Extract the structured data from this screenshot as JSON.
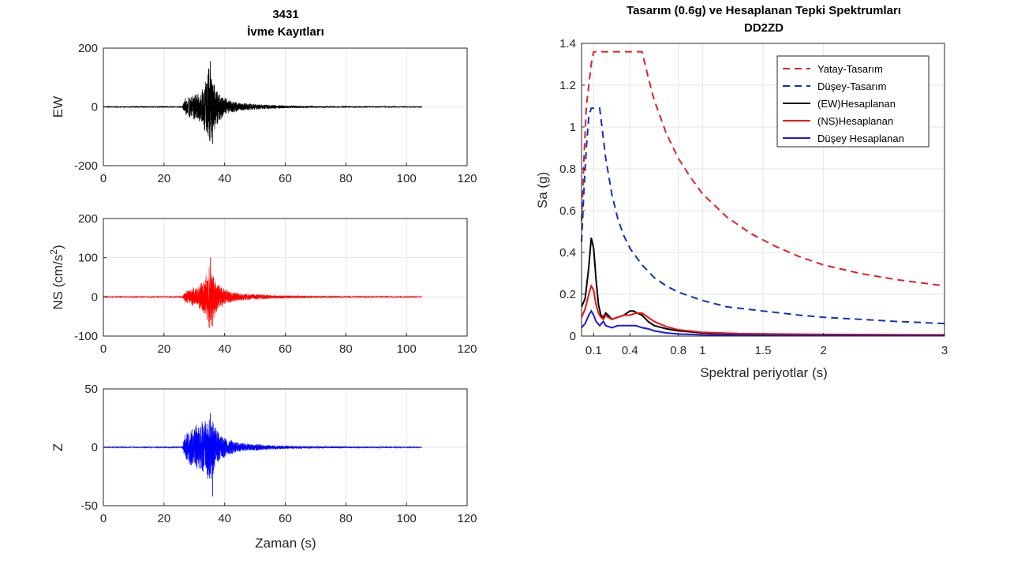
{
  "figure": {
    "left_title_line1": "3431",
    "left_title_line2": "İvme Kayıtları",
    "x_label_time": "Zaman (s)"
  },
  "chart_data": [
    {
      "type": "line",
      "id": "ew",
      "ylabel": "EW",
      "color": "#000000",
      "xlim": [
        0,
        120
      ],
      "ylim": [
        -200,
        200
      ],
      "xticks": [
        0,
        20,
        40,
        60,
        80,
        100,
        120
      ],
      "yticks": [
        -200,
        0,
        200
      ],
      "duration": 105,
      "envelope": [
        [
          0,
          1
        ],
        [
          26,
          1.5
        ],
        [
          27,
          30
        ],
        [
          29,
          40
        ],
        [
          31,
          45
        ],
        [
          33,
          70
        ],
        [
          35,
          150
        ],
        [
          36,
          120
        ],
        [
          37,
          70
        ],
        [
          39,
          40
        ],
        [
          41,
          25
        ],
        [
          45,
          15
        ],
        [
          50,
          10
        ],
        [
          55,
          7
        ],
        [
          60,
          5
        ],
        [
          70,
          3
        ],
        [
          80,
          2
        ],
        [
          90,
          1.5
        ],
        [
          105,
          1
        ]
      ],
      "peak_max": 155,
      "peak_min": -125
    },
    {
      "type": "line",
      "id": "ns",
      "ylabel": "NS (cm/s",
      "ylabel_sup": "2",
      "ylabel_close": ")",
      "color": "#ff0000",
      "xlim": [
        0,
        120
      ],
      "ylim": [
        -100,
        200
      ],
      "xticks": [
        0,
        20,
        40,
        60,
        80,
        100,
        120
      ],
      "yticks": [
        -100,
        0,
        100,
        200
      ],
      "duration": 105,
      "envelope": [
        [
          0,
          1
        ],
        [
          26,
          1.5
        ],
        [
          27,
          15
        ],
        [
          29,
          22
        ],
        [
          31,
          28
        ],
        [
          33,
          40
        ],
        [
          35,
          95
        ],
        [
          36,
          70
        ],
        [
          37,
          45
        ],
        [
          39,
          28
        ],
        [
          41,
          18
        ],
        [
          45,
          10
        ],
        [
          50,
          7
        ],
        [
          55,
          5
        ],
        [
          60,
          4
        ],
        [
          70,
          2.5
        ],
        [
          80,
          2
        ],
        [
          90,
          1.5
        ],
        [
          105,
          1
        ]
      ],
      "peak_max": 100,
      "peak_min": -75
    },
    {
      "type": "line",
      "id": "z",
      "ylabel": "Z",
      "color": "#0000ff",
      "xlim": [
        0,
        120
      ],
      "ylim": [
        -50,
        50
      ],
      "xticks": [
        0,
        20,
        40,
        60,
        80,
        100,
        120
      ],
      "yticks": [
        -50,
        0,
        50
      ],
      "duration": 105,
      "envelope": [
        [
          0,
          0.3
        ],
        [
          26,
          0.5
        ],
        [
          27,
          12
        ],
        [
          29,
          17
        ],
        [
          31,
          20
        ],
        [
          33,
          23
        ],
        [
          35,
          30
        ],
        [
          36,
          25
        ],
        [
          37,
          18
        ],
        [
          39,
          11
        ],
        [
          41,
          7
        ],
        [
          45,
          4
        ],
        [
          50,
          3
        ],
        [
          55,
          2
        ],
        [
          60,
          1.5
        ],
        [
          70,
          1
        ],
        [
          80,
          0.7
        ],
        [
          90,
          0.5
        ],
        [
          105,
          0.3
        ]
      ],
      "peak_max": 29,
      "peak_min": -42
    },
    {
      "type": "line",
      "id": "spectra",
      "title_line1": "Tasarım (0.6g) ve Hesaplanan Tepki Spektrumları",
      "title_line2": "DD2ZD",
      "xlabel": "Spektral periyotlar (s)",
      "ylabel": "Sa (g)",
      "xlim": [
        0,
        3
      ],
      "ylim": [
        0,
        1.4
      ],
      "xticks": [
        0.1,
        0.4,
        0.8,
        1,
        1.5,
        2,
        3
      ],
      "xtick_labels": [
        "0.1",
        "0.4",
        "0.8",
        "1",
        "1.5",
        "2",
        "3"
      ],
      "yticks": [
        0,
        0.2,
        0.4,
        0.6,
        0.8,
        1,
        1.2,
        1.4
      ],
      "ytick_labels": [
        "0",
        "0.2",
        "0.4",
        "0.6",
        "0.8",
        "1",
        "1.2",
        "1.4"
      ],
      "series": [
        {
          "name": "Yatay-Tasarım",
          "color": "#dd2222",
          "dash": "dashed",
          "x": [
            0,
            0.02,
            0.04,
            0.08,
            0.1,
            0.15,
            0.2,
            0.25,
            0.3,
            0.35,
            0.4,
            0.45,
            0.5,
            0.55,
            0.6,
            0.7,
            0.8,
            0.9,
            1.0,
            1.2,
            1.4,
            1.6,
            1.8,
            2.0,
            2.3,
            2.6,
            3.0
          ],
          "y": [
            0.55,
            0.85,
            1.1,
            1.3,
            1.36,
            1.36,
            1.36,
            1.36,
            1.36,
            1.36,
            1.36,
            1.36,
            1.36,
            1.24,
            1.13,
            0.97,
            0.85,
            0.76,
            0.68,
            0.57,
            0.49,
            0.43,
            0.38,
            0.34,
            0.3,
            0.27,
            0.24
          ]
        },
        {
          "name": "Düşey-Tasarım",
          "color": "#1133bb",
          "dash": "dashed",
          "x": [
            0,
            0.02,
            0.04,
            0.06,
            0.08,
            0.1,
            0.12,
            0.15,
            0.2,
            0.25,
            0.3,
            0.35,
            0.4,
            0.5,
            0.6,
            0.7,
            0.8,
            1.0,
            1.2,
            1.5,
            1.8,
            2.0,
            2.3,
            2.6,
            3.0
          ],
          "y": [
            0.45,
            0.7,
            0.9,
            1.05,
            1.09,
            1.09,
            1.09,
            1.09,
            0.85,
            0.68,
            0.56,
            0.48,
            0.42,
            0.34,
            0.28,
            0.24,
            0.21,
            0.17,
            0.14,
            0.12,
            0.1,
            0.09,
            0.08,
            0.07,
            0.06
          ]
        },
        {
          "name": "(EW)Hesaplanan",
          "color": "#000000",
          "dash": "solid",
          "x": [
            0,
            0.03,
            0.06,
            0.08,
            0.1,
            0.12,
            0.14,
            0.16,
            0.18,
            0.2,
            0.22,
            0.25,
            0.3,
            0.35,
            0.4,
            0.43,
            0.46,
            0.5,
            0.55,
            0.6,
            0.7,
            0.8,
            1.0,
            1.3,
            1.6,
            2.0,
            2.5,
            3.0
          ],
          "y": [
            0.14,
            0.18,
            0.33,
            0.47,
            0.42,
            0.27,
            0.15,
            0.1,
            0.09,
            0.11,
            0.1,
            0.08,
            0.09,
            0.1,
            0.12,
            0.12,
            0.11,
            0.1,
            0.07,
            0.05,
            0.035,
            0.025,
            0.015,
            0.01,
            0.008,
            0.006,
            0.005,
            0.004
          ]
        },
        {
          "name": "(NS)Hesaplanan",
          "color": "#ee1111",
          "dash": "solid",
          "x": [
            0,
            0.03,
            0.06,
            0.08,
            0.1,
            0.12,
            0.14,
            0.16,
            0.18,
            0.2,
            0.22,
            0.25,
            0.3,
            0.35,
            0.4,
            0.45,
            0.5,
            0.55,
            0.6,
            0.7,
            0.8,
            1.0,
            1.3,
            1.6,
            2.0,
            2.5,
            3.0
          ],
          "y": [
            0.09,
            0.13,
            0.2,
            0.24,
            0.22,
            0.15,
            0.11,
            0.09,
            0.08,
            0.1,
            0.09,
            0.08,
            0.09,
            0.1,
            0.1,
            0.11,
            0.11,
            0.09,
            0.07,
            0.045,
            0.03,
            0.018,
            0.012,
            0.01,
            0.008,
            0.007,
            0.006
          ]
        },
        {
          "name": "Düşey Hesaplanan",
          "color": "#1a1add",
          "dash": "solid",
          "x": [
            0,
            0.03,
            0.06,
            0.08,
            0.1,
            0.12,
            0.15,
            0.18,
            0.2,
            0.25,
            0.3,
            0.35,
            0.4,
            0.45,
            0.5,
            0.55,
            0.6,
            0.7,
            0.8,
            1.0,
            1.3,
            1.6,
            2.0,
            2.5,
            3.0
          ],
          "y": [
            0.04,
            0.06,
            0.1,
            0.12,
            0.1,
            0.07,
            0.05,
            0.07,
            0.05,
            0.04,
            0.05,
            0.05,
            0.05,
            0.05,
            0.04,
            0.035,
            0.025,
            0.015,
            0.01,
            0.006,
            0.004,
            0.003,
            0.003,
            0.002,
            0.002
          ]
        }
      ]
    }
  ]
}
